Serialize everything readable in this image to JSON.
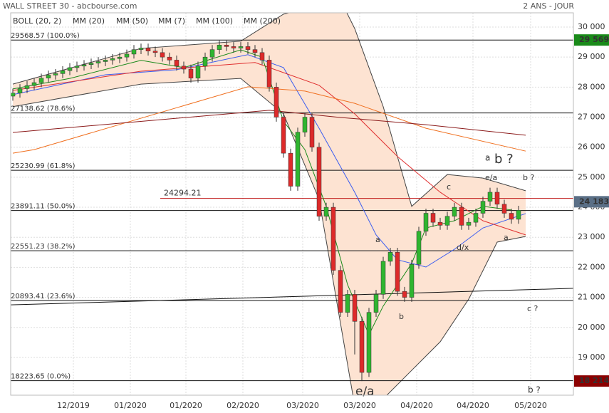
{
  "chart_data": {
    "type": "candlestick",
    "title": "WALL STREET 30 - abcbourse.com",
    "subtitle": "2 ANS - JOUR",
    "xlim": [
      -0.3,
      78.7
    ],
    "ylim": [
      17742,
      30474
    ],
    "xticks": [
      {
        "value": 8.5,
        "label": "12/2019"
      },
      {
        "value": 16.5,
        "label": "01/2020"
      },
      {
        "value": 24.3,
        "label": "01/2020"
      },
      {
        "value": 32.3,
        "label": "02/2020"
      },
      {
        "value": 40.7,
        "label": "03/2020"
      },
      {
        "value": 48.7,
        "label": "03/2020"
      },
      {
        "value": 56.7,
        "label": "04/2020"
      },
      {
        "value": 64.6,
        "label": "04/2020"
      },
      {
        "value": 72.7,
        "label": "05/2020"
      }
    ],
    "yticks": [
      {
        "value": 19000,
        "label": "19 000"
      },
      {
        "value": 20000,
        "label": "20 000"
      },
      {
        "value": 21000,
        "label": "21 000"
      },
      {
        "value": 22000,
        "label": "22 000"
      },
      {
        "value": 23000,
        "label": "23 000"
      },
      {
        "value": 24000,
        "label": "24 000"
      },
      {
        "value": 25000,
        "label": "25 000"
      },
      {
        "value": 26000,
        "label": "26 000"
      },
      {
        "value": 27000,
        "label": "27 000"
      },
      {
        "value": 28000,
        "label": "28 000"
      },
      {
        "value": 29000,
        "label": "29 000"
      },
      {
        "value": 30000,
        "label": "30 000"
      }
    ],
    "grid": true,
    "up_color": "#2fb52f",
    "down_color": "#dd2a2a",
    "x": [
      0,
      1,
      2,
      3,
      4,
      5,
      6,
      7,
      8,
      9,
      10,
      11,
      12,
      13,
      14,
      15,
      16,
      17,
      18,
      19,
      20,
      21,
      22,
      23,
      24,
      25,
      26,
      27,
      28,
      29,
      30,
      31,
      32,
      33,
      34,
      35,
      36,
      37,
      38,
      39,
      40,
      41,
      42,
      43,
      44,
      45,
      46,
      47,
      48,
      49,
      50,
      51,
      52,
      53,
      54,
      55,
      56,
      57,
      58,
      59,
      60,
      61,
      62,
      63,
      64,
      65,
      66,
      67,
      68,
      69,
      70,
      71
    ],
    "open": [
      27700,
      27800,
      27950,
      28050,
      28150,
      28300,
      28400,
      28450,
      28550,
      28650,
      28700,
      28750,
      28800,
      28850,
      28900,
      28950,
      29000,
      29100,
      29250,
      29300,
      29200,
      29150,
      29000,
      28900,
      28700,
      28600,
      28300,
      28700,
      29000,
      29250,
      29400,
      29350,
      29300,
      29350,
      29250,
      29150,
      28900,
      28000,
      27000,
      25800,
      24700,
      26500,
      27000,
      26000,
      23700,
      24000,
      21900,
      20500,
      21100,
      20200,
      18500,
      20500,
      21100,
      22200,
      22500,
      21200,
      21000,
      22100,
      23200,
      23800,
      23500,
      23400,
      23700,
      24000,
      23400,
      23500,
      23800,
      24200,
      24500,
      24100,
      23800,
      23600
    ],
    "high": [
      27950,
      28100,
      28200,
      28300,
      28450,
      28550,
      28600,
      28700,
      28800,
      28850,
      28900,
      28950,
      29000,
      29050,
      29100,
      29150,
      29250,
      29400,
      29450,
      29450,
      29350,
      29300,
      29150,
      29050,
      28850,
      28750,
      28850,
      29150,
      29400,
      29550,
      29550,
      29500,
      29500,
      29500,
      29400,
      29300,
      29050,
      28150,
      27150,
      25950,
      26650,
      27150,
      27150,
      26150,
      24150,
      24150,
      22050,
      21250,
      21250,
      20350,
      20650,
      21250,
      22350,
      22650,
      22650,
      21350,
      22250,
      23350,
      23950,
      23950,
      23650,
      23850,
      24150,
      24150,
      23650,
      23950,
      24350,
      24650,
      24650,
      24250,
      23950,
      24050
    ],
    "low": [
      27550,
      27650,
      27800,
      27900,
      28000,
      28150,
      28250,
      28300,
      28400,
      28500,
      28550,
      28600,
      28650,
      28700,
      28750,
      28800,
      28850,
      28950,
      29100,
      29050,
      29000,
      28850,
      28750,
      28550,
      28450,
      28150,
      28150,
      28550,
      28850,
      29100,
      29200,
      29150,
      29150,
      29100,
      29000,
      28750,
      27850,
      26850,
      25650,
      24550,
      24550,
      26350,
      25850,
      23550,
      23550,
      21750,
      20350,
      20350,
      19100,
      18214,
      18350,
      20350,
      20950,
      22050,
      21050,
      20850,
      20850,
      21950,
      23050,
      23350,
      23250,
      23250,
      23550,
      23250,
      23250,
      23350,
      23650,
      24050,
      23950,
      23650,
      23450,
      23450
    ],
    "close": [
      27800,
      27950,
      28050,
      28150,
      28300,
      28400,
      28450,
      28550,
      28650,
      28700,
      28750,
      28800,
      28850,
      28900,
      28950,
      29000,
      29100,
      29250,
      29300,
      29200,
      29150,
      29000,
      28900,
      28700,
      28600,
      28300,
      28700,
      29000,
      29250,
      29400,
      29350,
      29300,
      29350,
      29250,
      29150,
      28900,
      28000,
      27000,
      25800,
      24700,
      26500,
      27000,
      26000,
      23700,
      24000,
      21900,
      20500,
      21100,
      20200,
      18500,
      20500,
      21100,
      22200,
      22500,
      21200,
      21000,
      22100,
      23200,
      23800,
      23500,
      23400,
      23700,
      24000,
      23400,
      23500,
      23800,
      24200,
      24500,
      24100,
      23800,
      23600,
      23900
    ],
    "bollinger": {
      "name": "BOLL (20, 2)",
      "color": "#444444",
      "fill": "#fde3d2",
      "upper": {
        "x": [
          0,
          18,
          32,
          38,
          46,
          48,
          52,
          56,
          61,
          66,
          72
        ],
        "values": [
          28100,
          29290,
          29530,
          30430,
          30900,
          29950,
          27350,
          24030,
          25090,
          24970,
          24550
        ]
      },
      "lower": {
        "x": [
          0,
          18,
          32,
          38,
          43,
          48,
          52,
          56,
          60,
          64,
          68,
          72
        ],
        "values": [
          27350,
          28100,
          28290,
          27110,
          24260,
          17390,
          17620,
          18570,
          19520,
          20940,
          22840,
          23030
        ]
      }
    },
    "series": [
      {
        "name": "MM (20)",
        "color": "#3a5cf0",
        "x": [
          0,
          13,
          23,
          33,
          38,
          43,
          48,
          51,
          54,
          58,
          62,
          66,
          72
        ],
        "values": [
          27750,
          28410,
          28580,
          29080,
          28650,
          26630,
          24500,
          23080,
          22250,
          22010,
          22600,
          23310,
          23790
        ]
      },
      {
        "name": "MM (50)",
        "color": "#e03030",
        "x": [
          0,
          18,
          34,
          43,
          48,
          54,
          60,
          66,
          72
        ],
        "values": [
          27890,
          28530,
          28820,
          28060,
          27110,
          25690,
          24500,
          23550,
          23080
        ]
      },
      {
        "name": "MM (7)",
        "color": "#1a8a1a",
        "x": [
          0,
          8,
          18,
          24,
          32,
          35,
          38,
          41,
          44,
          47,
          50,
          52,
          54,
          56,
          58,
          62,
          66,
          70
        ],
        "values": [
          27940,
          28290,
          28890,
          28650,
          29240,
          29000,
          26870,
          25920,
          24030,
          21420,
          19760,
          20710,
          21420,
          22130,
          23310,
          23550,
          24030,
          23910
        ]
      },
      {
        "name": "MM (100)",
        "color": "#f07020",
        "x": [
          0,
          3,
          33,
          41,
          48,
          58,
          72
        ],
        "values": [
          25800,
          25920,
          28010,
          27870,
          27460,
          26630,
          25870
        ]
      },
      {
        "name": "MM (200)",
        "color": "#8b1a1a",
        "x": [
          0,
          36,
          46,
          58,
          72
        ],
        "values": [
          26490,
          27230,
          26990,
          26750,
          26400
        ]
      }
    ],
    "levels": [
      {
        "label": "29568.57  (100.0%)",
        "value": 29568.57
      },
      {
        "label": "27138.62  (78.6%)",
        "value": 27138.62
      },
      {
        "label": "25230.99  (61.8%)",
        "value": 25230.99
      },
      {
        "label": "23891.11  (50.0%)",
        "value": 23891.11
      },
      {
        "label": "22551.23  (38.2%)",
        "value": 22551.23
      },
      {
        "label": "20893.41  (23.6%)",
        "value": 20893.41
      },
      {
        "label": "18223.65  (0.0%)",
        "value": 18223.65
      }
    ],
    "red_level": {
      "label": "24294.21",
      "value": 24294.21,
      "color": "#c01818"
    },
    "trendline": {
      "x": [
        -0.3,
        78.7
      ],
      "values": [
        20750,
        21300
      ]
    },
    "badges": [
      {
        "label": "29 569",
        "value": 29569,
        "color": "#1a8a1a"
      },
      {
        "label": "24 183",
        "value": 24183,
        "color": "#5a6f86"
      },
      {
        "label": "18 214",
        "value": 18214,
        "color": "#8b0000"
      }
    ],
    "annotations": [
      {
        "text": "a",
        "color": "#1a1a7a"
      },
      {
        "text": "b ?",
        "color": "#9b1010"
      },
      {
        "text": "e/a",
        "color": "#1a1a7a"
      },
      {
        "text": "b ?",
        "color": "#c02020"
      },
      {
        "text": "c",
        "color": "#1a1a7a"
      },
      {
        "text": "d/x",
        "color": "#1a1a7a"
      },
      {
        "text": "a",
        "color": "#c02020"
      },
      {
        "text": "a",
        "color": "#1a1a7a"
      },
      {
        "text": "b",
        "color": "#1a1a7a"
      },
      {
        "text": "c ?",
        "color": "#c02020"
      },
      {
        "text": "b ?",
        "color": "#1a1a7a"
      },
      {
        "text": "e/a",
        "color": "#9b1010"
      }
    ]
  }
}
